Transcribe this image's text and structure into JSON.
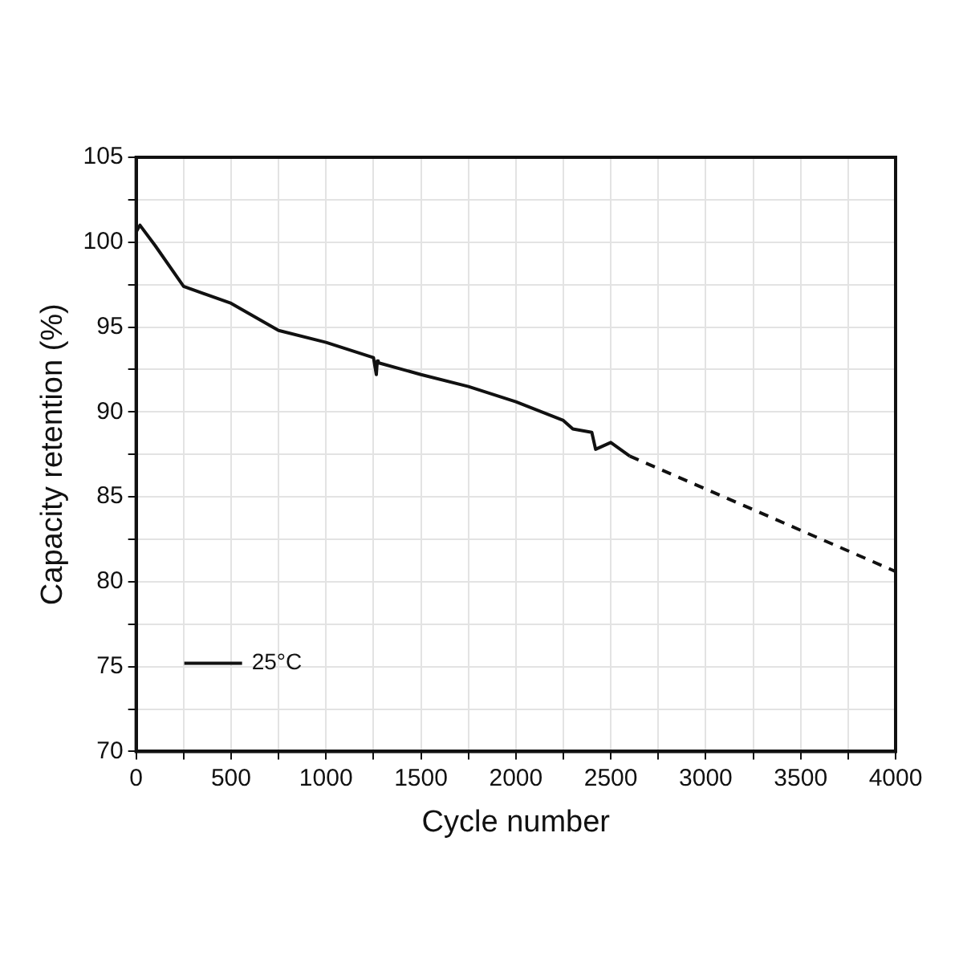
{
  "chart_data": {
    "type": "line",
    "xlabel": "Cycle number",
    "ylabel": "Capacity retention (%)",
    "xlim": [
      0,
      4000
    ],
    "ylim": [
      70,
      105
    ],
    "xticks": [
      0,
      {
        "value": 250,
        "label": null
      },
      500,
      {
        "value": 750,
        "label": null
      },
      1000,
      {
        "value": 1250,
        "label": null
      },
      1500,
      {
        "value": 1750,
        "label": null
      },
      2000,
      {
        "value": 2250,
        "label": null
      },
      2500,
      {
        "value": 2750,
        "label": null
      },
      3000,
      {
        "value": 3250,
        "label": null
      },
      3500,
      {
        "value": 3750,
        "label": null
      },
      4000
    ],
    "yticks": [
      70,
      {
        "value": 72.5,
        "label": null
      },
      75,
      {
        "value": 77.5,
        "label": null
      },
      80,
      {
        "value": 82.5,
        "label": null
      },
      85,
      {
        "value": 87.5,
        "label": null
      },
      90,
      {
        "value": 92.5,
        "label": null
      },
      95,
      {
        "value": 97.5,
        "label": null
      },
      100,
      {
        "value": 102.5,
        "label": null
      },
      105
    ],
    "grid": true,
    "legend": "bottom left",
    "marker": "none",
    "series": [
      {
        "name": "25°C",
        "color": "#111111",
        "line_style": "solid",
        "x": [
          0,
          20,
          100,
          250,
          500,
          750,
          1000,
          1250,
          1265,
          1270,
          1275,
          1500,
          1750,
          2000,
          2250,
          2300,
          2400,
          2420,
          2500,
          2600
        ],
        "values": [
          100.6,
          101.0,
          99.8,
          97.4,
          96.4,
          94.8,
          94.1,
          93.2,
          92.2,
          93.0,
          92.9,
          92.2,
          91.5,
          90.6,
          89.5,
          89.0,
          88.8,
          87.8,
          88.2,
          87.4
        ]
      },
      {
        "color": "#111111",
        "line_style": "dashed",
        "x": [
          2600,
          4000
        ],
        "values": [
          87.4,
          80.6
        ]
      }
    ]
  }
}
